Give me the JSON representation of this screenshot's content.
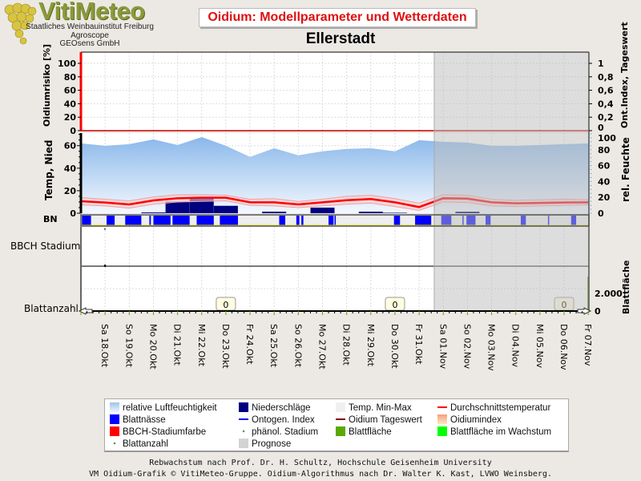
{
  "logo": {
    "name": "VitiMeteo",
    "lines": [
      "Staatliches Weinbauinstitut Freiburg",
      "Agroscope",
      "GEOsens GmbH"
    ]
  },
  "header": {
    "title": "Oidium: Modellparameter und Wetterdaten",
    "station": "Ellerstadt"
  },
  "axes": {
    "risk_label": "Oidiumrisiko [%]",
    "risk_ticks": [
      "0",
      "20",
      "40",
      "60",
      "80",
      "100"
    ],
    "index_label": "Ont.Index, Tageswert",
    "index_ticks": [
      "0",
      "0,2",
      "0,4",
      "0,6",
      "0,8",
      "1"
    ],
    "temp_label": "Temp, Nied",
    "temp_ticks": [
      "0",
      "20",
      "40",
      "60"
    ],
    "rh_label": "rel. Feuchte",
    "rh_ticks": [
      "0",
      "20",
      "40",
      "60",
      "80",
      "100"
    ],
    "bn_label": "BN",
    "bbch_label": "BBCH Stadium",
    "leafcount_label": "Blattanzahl",
    "leafarea_label": "Blattfläche",
    "leafarea_ticks": [
      "0",
      "2.000"
    ]
  },
  "chart_data": {
    "type": "line",
    "x_range": [
      "17.10",
      "07.11"
    ],
    "x_tick_labels": [
      "Sa 18.Okt",
      "So 19.Okt",
      "Mo 20.Okt",
      "Di 21.Okt",
      "Mi 22.Okt",
      "Do 23.Okt",
      "Fr 24.Okt",
      "Sa 25.Okt",
      "So 26.Okt",
      "Mo 27.Okt",
      "Di 28.Okt",
      "Mi 29.Okt",
      "Do 30.Okt",
      "Fr 31.Okt",
      "Sa 01.Nov",
      "So 02.Nov",
      "Mo 03.Nov",
      "Di 04.Nov",
      "Mi 05.Nov",
      "Do 06.Nov",
      "Fr 07.Nov"
    ],
    "dates": [
      "17.10",
      "18.10",
      "19.10",
      "20.10",
      "21.10",
      "22.10",
      "23.10",
      "24.10",
      "25.10",
      "26.10",
      "27.10",
      "28.10",
      "29.10",
      "30.10",
      "31.10",
      "01.11",
      "02.11",
      "03.11",
      "04.11",
      "05.11",
      "06.11",
      "07.11"
    ],
    "relative_humidity": [
      88,
      85,
      87,
      93,
      86,
      96,
      85,
      71,
      82,
      73,
      78,
      81,
      82,
      78,
      92,
      90,
      89,
      85,
      85,
      86,
      87,
      88
    ],
    "temp_mean": [
      10.7,
      9.5,
      7.8,
      11.4,
      13.3,
      13.8,
      13.8,
      9.7,
      9.7,
      7.8,
      9.7,
      11.6,
      12.6,
      9.7,
      5.5,
      13.3,
      13.0,
      9.7,
      8.8,
      9.2,
      9.5,
      9.7
    ],
    "temp_min": [
      7.5,
      6.5,
      4.5,
      8.0,
      10.0,
      10.5,
      11.0,
      7.0,
      6.5,
      5.0,
      6.5,
      8.0,
      9.0,
      6.0,
      2.5,
      10.0,
      9.5,
      6.5,
      6.0,
      6.5,
      7.0,
      7.5
    ],
    "temp_max": [
      14.0,
      12.5,
      11.0,
      14.5,
      16.5,
      16.5,
      16.0,
      12.5,
      13.0,
      10.5,
      12.5,
      15.0,
      16.0,
      13.0,
      9.0,
      16.5,
      16.0,
      12.5,
      11.5,
      12.0,
      12.5,
      12.0
    ],
    "precipitation": [
      0,
      0,
      0,
      0.7,
      10.2,
      14.2,
      6.6,
      0,
      1.4,
      0,
      5.0,
      0,
      1.4,
      0.4,
      0,
      0,
      1.4,
      0,
      0,
      0,
      0,
      0
    ],
    "oidium_risk": [
      0,
      0,
      0,
      0,
      0,
      0,
      0,
      0,
      0,
      0,
      0,
      0,
      0,
      0,
      0,
      0,
      0,
      0,
      0,
      0,
      0,
      0
    ],
    "risk_range": [
      0,
      100
    ],
    "index_range": [
      0,
      1
    ],
    "temp_range": [
      0,
      70
    ],
    "rh_range": [
      0,
      100
    ],
    "leaf_wetness": [
      [
        "17.10 01:00",
        "17.10 10:00"
      ],
      [
        "18.10 01:30",
        "18.10 09:30"
      ],
      [
        "18.10 20:00",
        "19.10 12:00"
      ],
      [
        "19.10 20:00",
        "19.10 21:30"
      ],
      [
        "20.10 00:00",
        "20.10 17:00"
      ],
      [
        "20.10 19:00",
        "21.10 12:00"
      ],
      [
        "21.10 19:00",
        "22.10 12:00"
      ],
      [
        "22.10 18:00",
        "23.10 12:00"
      ],
      [
        "25.10 05:00",
        "25.10 11:00"
      ],
      [
        "25.10 22:00",
        "26.10 01:00"
      ],
      [
        "26.10 03:00",
        "26.10 05:00"
      ],
      [
        "27.10 06:00",
        "27.10 11:00"
      ],
      [
        "27.10 12:00",
        "27.10 13:00"
      ],
      [
        "29.10 23:00",
        "30.10 05:00"
      ],
      [
        "30.10 20:00",
        "31.10 12:00"
      ],
      [
        "31.10 22:00",
        "01.11 08:00"
      ],
      [
        "01.11 19:00",
        "01.11 20:00"
      ],
      [
        "01.11 23:00",
        "02.11 08:00"
      ],
      [
        "02.11 18:00",
        "02.11 23:00"
      ],
      [
        "04.11 05:00",
        "04.11 10:00"
      ],
      [
        "05.11 08:00",
        "05.11 09:00"
      ],
      [
        "06.11 07:00",
        "06.11 12:00"
      ]
    ],
    "leaf_count_labels": [
      {
        "date": "23.10",
        "value": "0"
      },
      {
        "date": "30.10",
        "value": "0"
      },
      {
        "date": "06.11",
        "value": "0"
      }
    ],
    "prognosis_start": "31.10 15:00",
    "colors": {
      "humidity": "#9cc3ec",
      "precip": "#000080",
      "leaf_wetness": "#0000ff",
      "temp_mean": "#ff0000",
      "temp_band": "#f8c8c8",
      "risk": "#cc0000",
      "prognosis": "#d3d3d3",
      "leaf_area": "#5aa800"
    }
  },
  "legend": [
    {
      "label": "relative Luftfeuchtigkeit",
      "swatch": "grad-blue"
    },
    {
      "label": "Niederschläge",
      "swatch": "#000080"
    },
    {
      "label": "Temp. Min-Max",
      "swatch": "#f0f0f0"
    },
    {
      "label": "Durchschnittstemperatur",
      "swatch": "line:#ff0000"
    },
    {
      "label": "Blattnässe",
      "swatch": "#0000ff"
    },
    {
      "label": "Ontogen. Index",
      "swatch": "line:#0000ff"
    },
    {
      "label": "Oidium Tageswert",
      "swatch": "line:#800000"
    },
    {
      "label": "Oidiumindex",
      "swatch": "grad-orange"
    },
    {
      "label": "BBCH-Stadiumfarbe",
      "swatch": "#ff0000"
    },
    {
      "label": "phänol. Stadium",
      "swatch": "dot"
    },
    {
      "label": "Blattfläche",
      "swatch": "#5aa800"
    },
    {
      "label": "Blattfläche im Wachstum",
      "swatch": "#00ff00"
    },
    {
      "label": "Blattanzahl",
      "swatch": "dot"
    },
    {
      "label": "Prognose",
      "swatch": "#d3d3d3"
    }
  ],
  "footer": [
    "Rebwachstum nach Prof. Dr. H. Schultz, Hochschule Geisenheim University",
    "VM Oidium-Grafik © VitiMeteo-Gruppe. Oidium-Algorithmus nach Dr. Walter K. Kast, LVWO Weinsberg."
  ]
}
